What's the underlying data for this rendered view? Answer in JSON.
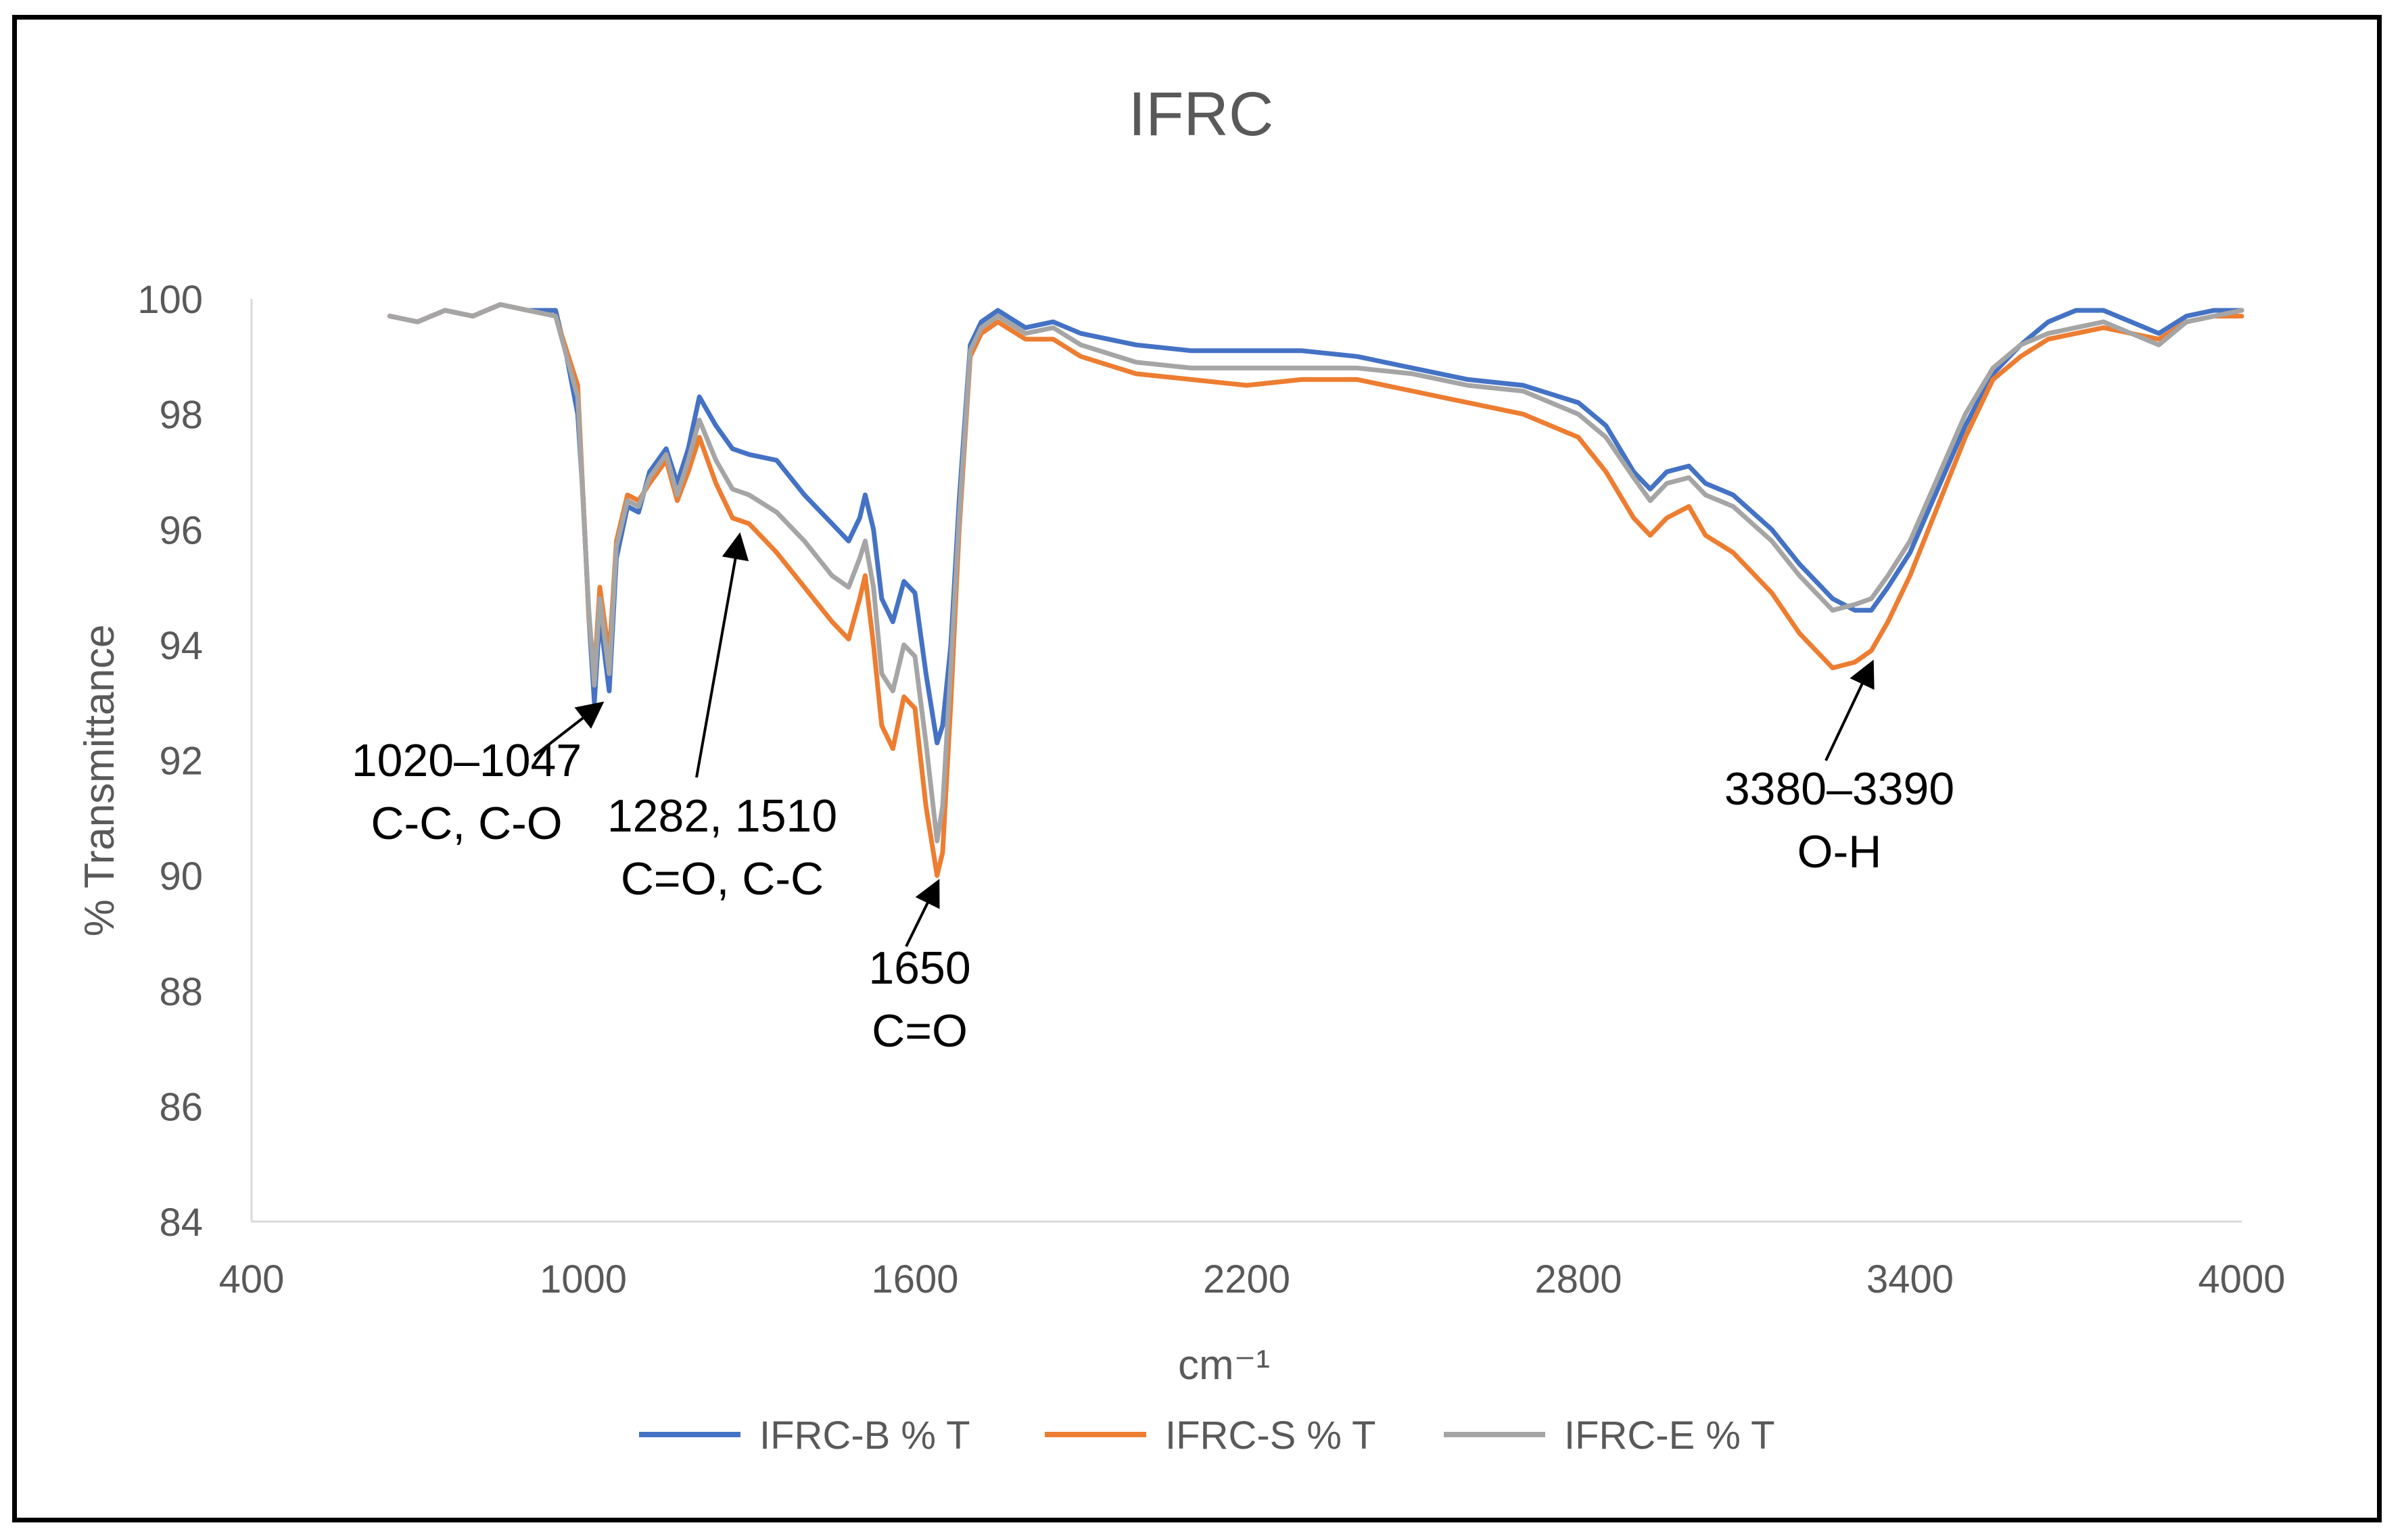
{
  "chart_data": {
    "type": "line",
    "title": "IFRC",
    "xlabel": "cm⁻¹",
    "ylabel": "% Transmittance",
    "xlim": [
      400,
      4000
    ],
    "ylim": [
      84,
      100
    ],
    "x_ticks": [
      "400",
      "1000",
      "1600",
      "2200",
      "2800",
      "3400",
      "4000"
    ],
    "y_ticks": [
      "84",
      "86",
      "88",
      "90",
      "92",
      "94",
      "96",
      "98",
      "100"
    ],
    "grid": false,
    "legend_position": "bottom",
    "series": [
      {
        "name": "IFRC-B % T",
        "color": "#4472C4",
        "points": [
          [
            650,
            99.7
          ],
          [
            700,
            99.6
          ],
          [
            750,
            99.8
          ],
          [
            800,
            99.7
          ],
          [
            850,
            99.9
          ],
          [
            900,
            99.8
          ],
          [
            950,
            99.8
          ],
          [
            970,
            99.0
          ],
          [
            990,
            98.0
          ],
          [
            1000,
            96.5
          ],
          [
            1010,
            94.5
          ],
          [
            1020,
            93.0
          ],
          [
            1030,
            94.5
          ],
          [
            1047,
            93.2
          ],
          [
            1060,
            95.5
          ],
          [
            1080,
            96.4
          ],
          [
            1100,
            96.3
          ],
          [
            1120,
            97.0
          ],
          [
            1150,
            97.4
          ],
          [
            1170,
            96.8
          ],
          [
            1190,
            97.4
          ],
          [
            1210,
            98.3
          ],
          [
            1240,
            97.8
          ],
          [
            1270,
            97.4
          ],
          [
            1300,
            97.3
          ],
          [
            1350,
            97.2
          ],
          [
            1400,
            96.6
          ],
          [
            1450,
            96.1
          ],
          [
            1480,
            95.8
          ],
          [
            1500,
            96.2
          ],
          [
            1510,
            96.6
          ],
          [
            1525,
            96.0
          ],
          [
            1540,
            94.8
          ],
          [
            1560,
            94.4
          ],
          [
            1580,
            95.1
          ],
          [
            1600,
            94.9
          ],
          [
            1620,
            93.5
          ],
          [
            1640,
            92.3
          ],
          [
            1650,
            92.6
          ],
          [
            1665,
            94.0
          ],
          [
            1680,
            96.5
          ],
          [
            1700,
            99.2
          ],
          [
            1720,
            99.6
          ],
          [
            1750,
            99.8
          ],
          [
            1800,
            99.5
          ],
          [
            1850,
            99.6
          ],
          [
            1900,
            99.4
          ],
          [
            2000,
            99.2
          ],
          [
            2100,
            99.1
          ],
          [
            2200,
            99.1
          ],
          [
            2300,
            99.1
          ],
          [
            2400,
            99.0
          ],
          [
            2500,
            98.8
          ],
          [
            2600,
            98.6
          ],
          [
            2700,
            98.5
          ],
          [
            2800,
            98.2
          ],
          [
            2850,
            97.8
          ],
          [
            2900,
            97.0
          ],
          [
            2930,
            96.7
          ],
          [
            2960,
            97.0
          ],
          [
            3000,
            97.1
          ],
          [
            3030,
            96.8
          ],
          [
            3080,
            96.6
          ],
          [
            3150,
            96.0
          ],
          [
            3200,
            95.4
          ],
          [
            3260,
            94.8
          ],
          [
            3300,
            94.6
          ],
          [
            3330,
            94.6
          ],
          [
            3360,
            95.0
          ],
          [
            3400,
            95.6
          ],
          [
            3450,
            96.7
          ],
          [
            3500,
            97.8
          ],
          [
            3550,
            98.7
          ],
          [
            3600,
            99.2
          ],
          [
            3650,
            99.6
          ],
          [
            3700,
            99.8
          ],
          [
            3750,
            99.8
          ],
          [
            3800,
            99.6
          ],
          [
            3850,
            99.4
          ],
          [
            3900,
            99.7
          ],
          [
            3950,
            99.8
          ],
          [
            4000,
            99.8
          ]
        ]
      },
      {
        "name": "IFRC-S % T",
        "color": "#ED7D31",
        "points": [
          [
            650,
            99.7
          ],
          [
            700,
            99.6
          ],
          [
            750,
            99.8
          ],
          [
            800,
            99.7
          ],
          [
            850,
            99.9
          ],
          [
            900,
            99.8
          ],
          [
            950,
            99.7
          ],
          [
            970,
            99.1
          ],
          [
            990,
            98.5
          ],
          [
            1000,
            96.5
          ],
          [
            1010,
            94.5
          ],
          [
            1020,
            93.5
          ],
          [
            1030,
            95.0
          ],
          [
            1047,
            93.8
          ],
          [
            1060,
            95.8
          ],
          [
            1080,
            96.6
          ],
          [
            1100,
            96.5
          ],
          [
            1120,
            96.8
          ],
          [
            1150,
            97.2
          ],
          [
            1170,
            96.5
          ],
          [
            1190,
            97.0
          ],
          [
            1210,
            97.6
          ],
          [
            1240,
            96.8
          ],
          [
            1270,
            96.2
          ],
          [
            1300,
            96.1
          ],
          [
            1350,
            95.6
          ],
          [
            1400,
            95.0
          ],
          [
            1450,
            94.4
          ],
          [
            1480,
            94.1
          ],
          [
            1500,
            94.8
          ],
          [
            1510,
            95.2
          ],
          [
            1525,
            94.0
          ],
          [
            1540,
            92.6
          ],
          [
            1560,
            92.2
          ],
          [
            1580,
            93.1
          ],
          [
            1600,
            92.9
          ],
          [
            1620,
            91.2
          ],
          [
            1640,
            90.0
          ],
          [
            1650,
            90.4
          ],
          [
            1665,
            93.0
          ],
          [
            1680,
            96.0
          ],
          [
            1700,
            99.0
          ],
          [
            1720,
            99.4
          ],
          [
            1750,
            99.6
          ],
          [
            1800,
            99.3
          ],
          [
            1850,
            99.3
          ],
          [
            1900,
            99.0
          ],
          [
            2000,
            98.7
          ],
          [
            2100,
            98.6
          ],
          [
            2200,
            98.5
          ],
          [
            2300,
            98.6
          ],
          [
            2400,
            98.6
          ],
          [
            2500,
            98.4
          ],
          [
            2600,
            98.2
          ],
          [
            2700,
            98.0
          ],
          [
            2800,
            97.6
          ],
          [
            2850,
            97.0
          ],
          [
            2900,
            96.2
          ],
          [
            2930,
            95.9
          ],
          [
            2960,
            96.2
          ],
          [
            3000,
            96.4
          ],
          [
            3030,
            95.9
          ],
          [
            3080,
            95.6
          ],
          [
            3150,
            94.9
          ],
          [
            3200,
            94.2
          ],
          [
            3260,
            93.6
          ],
          [
            3300,
            93.7
          ],
          [
            3330,
            93.9
          ],
          [
            3360,
            94.4
          ],
          [
            3400,
            95.2
          ],
          [
            3450,
            96.4
          ],
          [
            3500,
            97.6
          ],
          [
            3550,
            98.6
          ],
          [
            3600,
            99.0
          ],
          [
            3650,
            99.3
          ],
          [
            3700,
            99.4
          ],
          [
            3750,
            99.5
          ],
          [
            3800,
            99.4
          ],
          [
            3850,
            99.3
          ],
          [
            3900,
            99.6
          ],
          [
            3950,
            99.7
          ],
          [
            4000,
            99.7
          ]
        ]
      },
      {
        "name": "IFRC-E % T",
        "color": "#A5A5A5",
        "points": [
          [
            650,
            99.7
          ],
          [
            700,
            99.6
          ],
          [
            750,
            99.8
          ],
          [
            800,
            99.7
          ],
          [
            850,
            99.9
          ],
          [
            900,
            99.8
          ],
          [
            950,
            99.7
          ],
          [
            970,
            99.0
          ],
          [
            990,
            98.3
          ],
          [
            1000,
            96.4
          ],
          [
            1010,
            94.6
          ],
          [
            1020,
            93.3
          ],
          [
            1030,
            94.8
          ],
          [
            1047,
            93.5
          ],
          [
            1060,
            95.7
          ],
          [
            1080,
            96.5
          ],
          [
            1100,
            96.4
          ],
          [
            1120,
            96.9
          ],
          [
            1150,
            97.3
          ],
          [
            1170,
            96.6
          ],
          [
            1190,
            97.2
          ],
          [
            1210,
            97.9
          ],
          [
            1240,
            97.2
          ],
          [
            1270,
            96.7
          ],
          [
            1300,
            96.6
          ],
          [
            1350,
            96.3
          ],
          [
            1400,
            95.8
          ],
          [
            1450,
            95.2
          ],
          [
            1480,
            95.0
          ],
          [
            1500,
            95.5
          ],
          [
            1510,
            95.8
          ],
          [
            1525,
            95.0
          ],
          [
            1540,
            93.5
          ],
          [
            1560,
            93.2
          ],
          [
            1580,
            94.0
          ],
          [
            1600,
            93.8
          ],
          [
            1620,
            92.3
          ],
          [
            1640,
            90.6
          ],
          [
            1650,
            91.2
          ],
          [
            1665,
            93.6
          ],
          [
            1680,
            96.2
          ],
          [
            1700,
            99.1
          ],
          [
            1720,
            99.5
          ],
          [
            1750,
            99.7
          ],
          [
            1800,
            99.4
          ],
          [
            1850,
            99.5
          ],
          [
            1900,
            99.2
          ],
          [
            2000,
            98.9
          ],
          [
            2100,
            98.8
          ],
          [
            2200,
            98.8
          ],
          [
            2300,
            98.8
          ],
          [
            2400,
            98.8
          ],
          [
            2500,
            98.7
          ],
          [
            2600,
            98.5
          ],
          [
            2700,
            98.4
          ],
          [
            2800,
            98.0
          ],
          [
            2850,
            97.6
          ],
          [
            2900,
            96.9
          ],
          [
            2930,
            96.5
          ],
          [
            2960,
            96.8
          ],
          [
            3000,
            96.9
          ],
          [
            3030,
            96.6
          ],
          [
            3080,
            96.4
          ],
          [
            3150,
            95.8
          ],
          [
            3200,
            95.2
          ],
          [
            3260,
            94.6
          ],
          [
            3300,
            94.7
          ],
          [
            3330,
            94.8
          ],
          [
            3360,
            95.2
          ],
          [
            3400,
            95.8
          ],
          [
            3450,
            96.9
          ],
          [
            3500,
            98.0
          ],
          [
            3550,
            98.8
          ],
          [
            3600,
            99.2
          ],
          [
            3650,
            99.4
          ],
          [
            3700,
            99.5
          ],
          [
            3750,
            99.6
          ],
          [
            3800,
            99.4
          ],
          [
            3850,
            99.2
          ],
          [
            3900,
            99.6
          ],
          [
            3950,
            99.7
          ],
          [
            4000,
            99.8
          ]
        ]
      }
    ],
    "annotations": [
      {
        "lines": [
          "1020–1047",
          "C-C, C-O"
        ],
        "target": [
          1030,
          93.1
        ]
      },
      {
        "lines": [
          "1282, 1510",
          "C=O, C-C"
        ],
        "target": [
          1282,
          96.0
        ]
      },
      {
        "lines": [
          "1650",
          "C=O"
        ],
        "target": [
          1640,
          90.0
        ]
      },
      {
        "lines": [
          "3380–3390",
          "O-H"
        ],
        "target": [
          3330,
          93.8
        ]
      }
    ]
  }
}
